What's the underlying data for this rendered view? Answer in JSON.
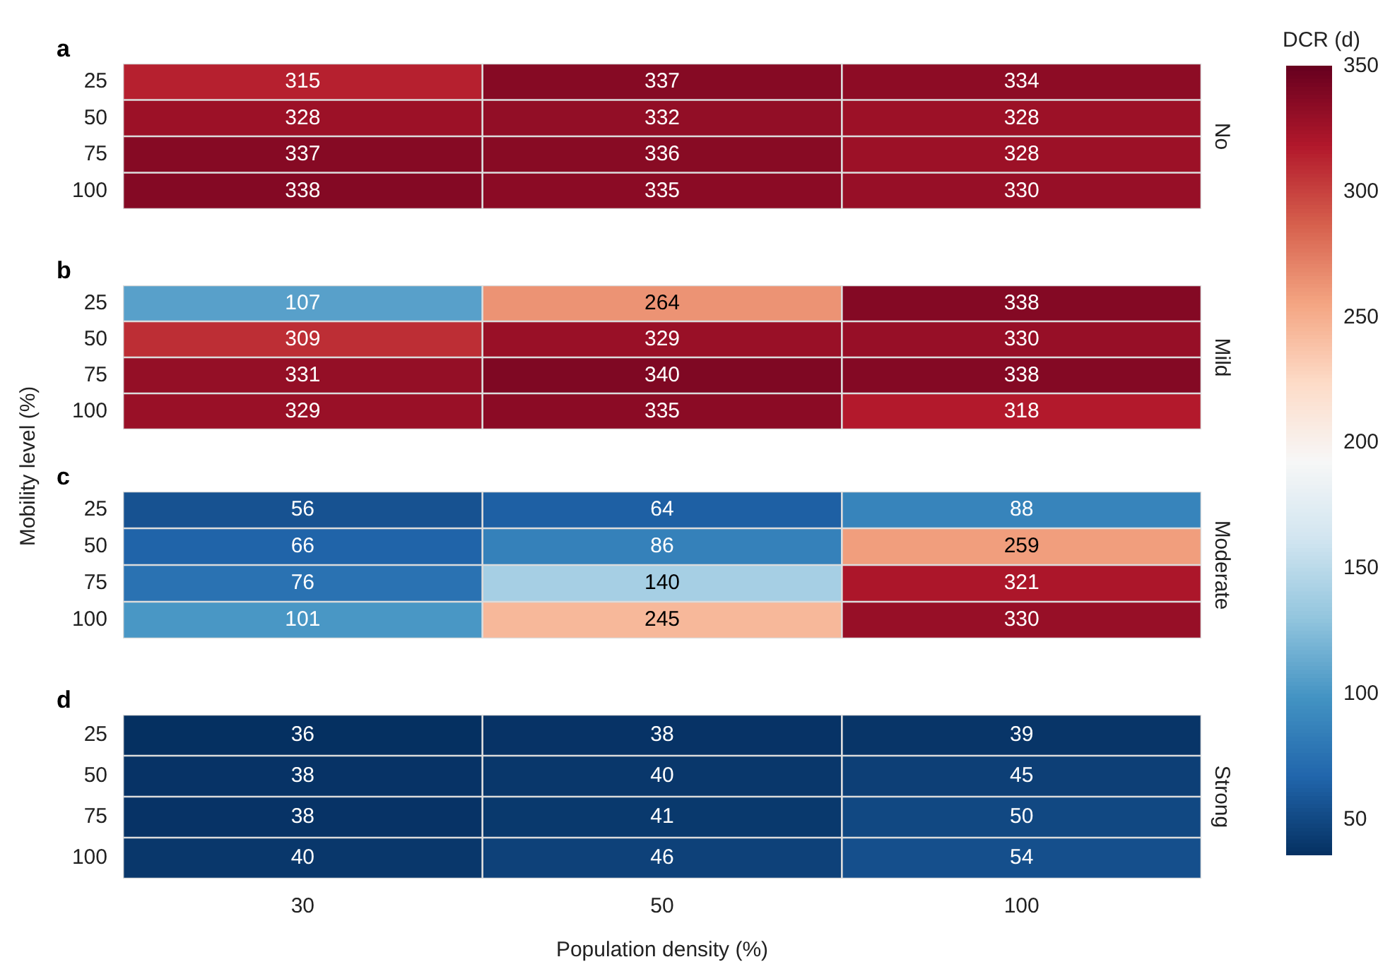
{
  "chart_data": [
    {
      "type": "heatmap",
      "title": "a",
      "y2label": "No",
      "categories": [
        "30",
        "50",
        "100"
      ],
      "y_categories": [
        "25",
        "50",
        "75",
        "100"
      ],
      "cells": [
        [
          315,
          337,
          334
        ],
        [
          328,
          332,
          328
        ],
        [
          337,
          336,
          328
        ],
        [
          338,
          335,
          330
        ]
      ],
      "clim": [
        36,
        350
      ],
      "cticks": [
        50,
        100,
        150,
        200,
        250,
        300,
        350
      ],
      "clabel": "DCR (d)",
      "data_labels": true,
      "tick_labels": "y"
    },
    {
      "type": "heatmap",
      "title": "b",
      "y2label": "Mild",
      "ylabel": "Mobility level (%)",
      "categories": [
        "30",
        "50",
        "100"
      ],
      "y_categories": [
        "25",
        "50",
        "75",
        "100"
      ],
      "cells": [
        [
          107,
          264,
          338
        ],
        [
          309,
          329,
          330
        ],
        [
          331,
          340,
          338
        ],
        [
          329,
          335,
          318
        ]
      ],
      "data_labels": true,
      "tick_labels": "y"
    },
    {
      "type": "heatmap",
      "title": "c",
      "y2label": "Moderate",
      "categories": [
        "30",
        "50",
        "100"
      ],
      "y_categories": [
        "25",
        "50",
        "75",
        "100"
      ],
      "cells": [
        [
          56,
          64,
          88
        ],
        [
          66,
          86,
          259
        ],
        [
          76,
          140,
          321
        ],
        [
          101,
          245,
          330
        ]
      ],
      "data_labels": true,
      "tick_labels": "y"
    },
    {
      "type": "heatmap",
      "title": "d",
      "y2label": "Strong",
      "xlabel": "Population density (%)",
      "categories": [
        "30",
        "50",
        "100"
      ],
      "y_categories": [
        "25",
        "50",
        "75",
        "100"
      ],
      "cells": [
        [
          36,
          38,
          39
        ],
        [
          38,
          40,
          45
        ],
        [
          38,
          41,
          50
        ],
        [
          40,
          46,
          54
        ]
      ],
      "data_labels": true
    }
  ]
}
